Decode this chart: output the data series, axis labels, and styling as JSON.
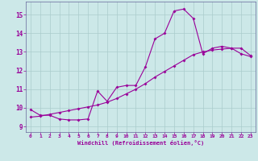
{
  "xlabel": "Windchill (Refroidissement éolien,°C)",
  "bg_color": "#cce8e8",
  "line_color": "#990099",
  "grid_color": "#aacccc",
  "axis_color": "#666699",
  "x_ticks": [
    0,
    1,
    2,
    3,
    4,
    5,
    6,
    7,
    8,
    9,
    10,
    11,
    12,
    13,
    14,
    15,
    16,
    17,
    18,
    19,
    20,
    21,
    22,
    23
  ],
  "y_ticks": [
    9,
    10,
    11,
    12,
    13,
    14,
    15
  ],
  "ylim": [
    8.7,
    15.7
  ],
  "xlim": [
    -0.5,
    23.5
  ],
  "series1_x": [
    0,
    1,
    2,
    3,
    4,
    5,
    6,
    7,
    8,
    9,
    10,
    11,
    12,
    13,
    14,
    15,
    16,
    17,
    18,
    19,
    20,
    21,
    22,
    23
  ],
  "series1_y": [
    9.9,
    9.6,
    9.6,
    9.4,
    9.35,
    9.35,
    9.4,
    10.9,
    10.35,
    11.1,
    11.2,
    11.2,
    12.2,
    13.7,
    14.0,
    15.2,
    15.3,
    14.8,
    12.9,
    13.2,
    13.3,
    13.2,
    13.2,
    12.8
  ],
  "series2_x": [
    0,
    1,
    2,
    3,
    4,
    5,
    6,
    7,
    8,
    9,
    10,
    11,
    12,
    13,
    14,
    15,
    16,
    17,
    18,
    19,
    20,
    21,
    22,
    23
  ],
  "series2_y": [
    9.5,
    9.55,
    9.65,
    9.75,
    9.85,
    9.95,
    10.05,
    10.15,
    10.3,
    10.5,
    10.75,
    11.0,
    11.3,
    11.65,
    11.95,
    12.25,
    12.55,
    12.85,
    13.0,
    13.1,
    13.15,
    13.2,
    12.9,
    12.75
  ]
}
